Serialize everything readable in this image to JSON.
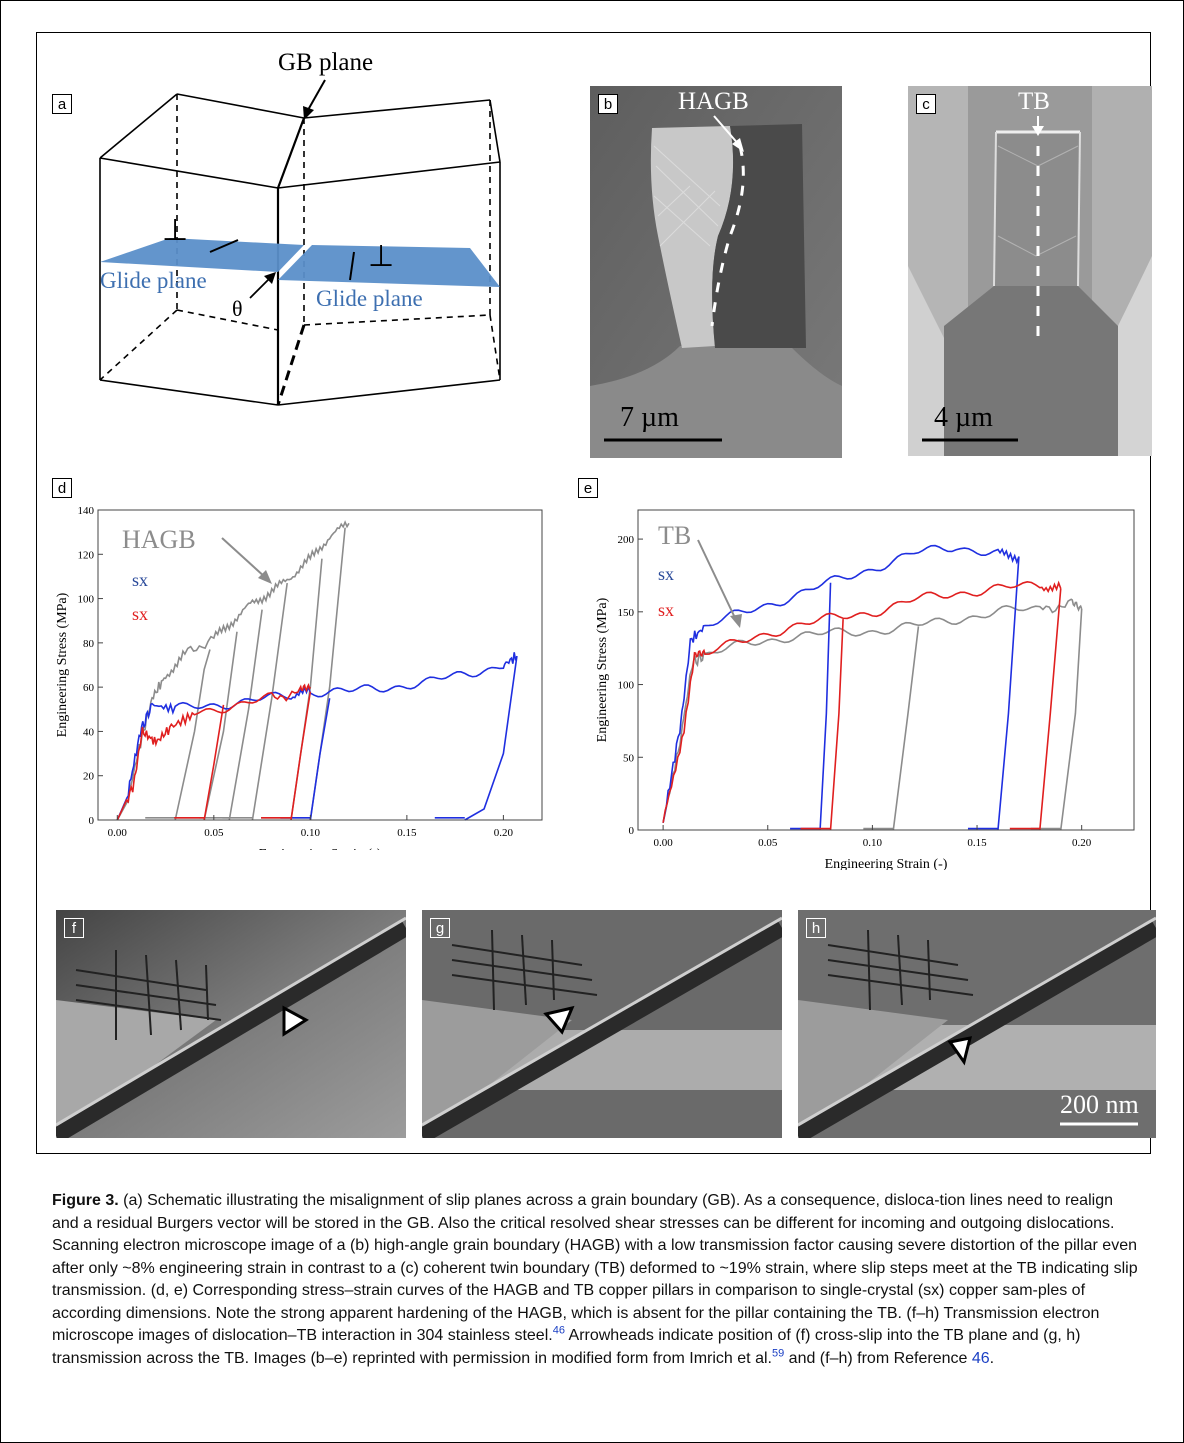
{
  "panel_labels": {
    "a": "a",
    "b": "b",
    "c": "c",
    "d": "d",
    "e": "e",
    "f": "f",
    "g": "g",
    "h": "h"
  },
  "schematic": {
    "gb_plane": "GB plane",
    "glide_left": "Glide plane",
    "glide_right": "Glide plane",
    "theta": "θ",
    "dislocation_symbol": "⊥",
    "glide_color": "#5b8fc9"
  },
  "sem_b": {
    "boundary_label": "HAGB",
    "scale": "7 µm"
  },
  "sem_c": {
    "boundary_label": "TB",
    "scale": "4 µm"
  },
  "tem": {
    "scale": "200 nm"
  },
  "colors": {
    "hagb": "#8c8c8c",
    "tb": "#8c8c8c",
    "sx_blue": "#1f2fe0",
    "sx_red": "#e01f1f",
    "label_blue": "#2a4a9a",
    "label_red": "#e01f1f"
  },
  "chart_data": [
    {
      "type": "line",
      "panel": "d",
      "xlabel": "Engineering Strain (-)",
      "ylabel": "Engineering Stress (MPa)",
      "xlim": [
        -0.01,
        0.22
      ],
      "ylim": [
        0,
        140
      ],
      "xticks": [
        "0.00",
        "0.05",
        "0.10",
        "0.15",
        "0.20"
      ],
      "yticks": [
        "0",
        "20",
        "40",
        "60",
        "80",
        "100",
        "120",
        "140"
      ],
      "legend": {
        "hagb": "HAGB",
        "sx1": "sx",
        "sx2": "sx"
      },
      "series": [
        {
          "name": "HAGB",
          "color": "#8c8c8c",
          "points": [
            [
              0.0,
              0
            ],
            [
              0.005,
              8
            ],
            [
              0.012,
              35
            ],
            [
              0.018,
              55
            ],
            [
              0.025,
              65
            ],
            [
              0.035,
              75
            ],
            [
              0.05,
              82
            ],
            [
              0.06,
              90
            ],
            [
              0.07,
              98
            ],
            [
              0.08,
              103
            ],
            [
              0.09,
              110
            ],
            [
              0.1,
              118
            ],
            [
              0.11,
              128
            ],
            [
              0.12,
              134
            ]
          ],
          "unload": [
            [
              [
                0.03,
                0
              ],
              [
                0.04,
                40
              ],
              [
                0.045,
                68
              ],
              [
                0.048,
                77
              ]
            ],
            [
              [
                0.045,
                0
              ],
              [
                0.055,
                40
              ],
              [
                0.062,
                85
              ]
            ],
            [
              [
                0.058,
                0
              ],
              [
                0.068,
                50
              ],
              [
                0.075,
                95
              ]
            ],
            [
              [
                0.07,
                0
              ],
              [
                0.08,
                55
              ],
              [
                0.088,
                107
              ]
            ],
            [
              [
                0.09,
                0
              ],
              [
                0.1,
                60
              ],
              [
                0.106,
                118
              ]
            ],
            [
              [
                0.1,
                0
              ],
              [
                0.11,
                60
              ],
              [
                0.118,
                132
              ]
            ]
          ]
        },
        {
          "name": "sx",
          "color": "#1f2fe0",
          "points": [
            [
              0.0,
              0
            ],
            [
              0.005,
              10
            ],
            [
              0.012,
              40
            ],
            [
              0.018,
              52
            ],
            [
              0.03,
              50
            ],
            [
              0.05,
              52
            ],
            [
              0.07,
              54
            ],
            [
              0.09,
              56
            ],
            [
              0.1,
              58
            ],
            [
              0.12,
              58
            ],
            [
              0.14,
              60
            ],
            [
              0.16,
              62
            ],
            [
              0.18,
              66
            ],
            [
              0.2,
              70
            ],
            [
              0.207,
              74
            ]
          ],
          "unload": [
            [
              [
                0.1,
                0
              ],
              [
                0.105,
                30
              ],
              [
                0.11,
                55
              ]
            ],
            [
              [
                0.18,
                0
              ],
              [
                0.19,
                5
              ],
              [
                0.2,
                30
              ],
              [
                0.207,
                74
              ]
            ]
          ]
        },
        {
          "name": "sx",
          "color": "#e01f1f",
          "points": [
            [
              0.0,
              0
            ],
            [
              0.008,
              15
            ],
            [
              0.013,
              40
            ],
            [
              0.02,
              35
            ],
            [
              0.028,
              42
            ],
            [
              0.04,
              48
            ],
            [
              0.06,
              52
            ],
            [
              0.08,
              55
            ],
            [
              0.095,
              58
            ],
            [
              0.1,
              60
            ]
          ],
          "unload": [
            [
              [
                0.045,
                0
              ],
              [
                0.05,
                25
              ],
              [
                0.055,
                52
              ]
            ],
            [
              [
                0.09,
                0
              ],
              [
                0.095,
                30
              ],
              [
                0.1,
                58
              ]
            ]
          ]
        }
      ]
    },
    {
      "type": "line",
      "panel": "e",
      "xlabel": "Engineering Strain (-)",
      "ylabel": "Engineering Stress (MPa)",
      "xlim": [
        -0.012,
        0.225
      ],
      "ylim": [
        0,
        220
      ],
      "xticks": [
        "0.00",
        "0.05",
        "0.10",
        "0.15",
        "0.20"
      ],
      "yticks": [
        "0",
        "50",
        "100",
        "150",
        "200"
      ],
      "legend": {
        "tb": "TB",
        "sx1": "sx",
        "sx2": "sx"
      },
      "series": [
        {
          "name": "TB",
          "color": "#8c8c8c",
          "points": [
            [
              0.0,
              5
            ],
            [
              0.008,
              60
            ],
            [
              0.014,
              115
            ],
            [
              0.02,
              120
            ],
            [
              0.04,
              128
            ],
            [
              0.06,
              133
            ],
            [
              0.08,
              135
            ],
            [
              0.1,
              137
            ],
            [
              0.12,
              140
            ],
            [
              0.14,
              145
            ],
            [
              0.16,
              150
            ],
            [
              0.18,
              152
            ],
            [
              0.195,
              155
            ],
            [
              0.2,
              152
            ]
          ],
          "unload": [
            [
              [
                0.11,
                0
              ],
              [
                0.117,
                80
              ],
              [
                0.122,
                140
              ]
            ],
            [
              [
                0.19,
                0
              ],
              [
                0.197,
                80
              ],
              [
                0.2,
                152
              ]
            ]
          ]
        },
        {
          "name": "sx",
          "color": "#1f2fe0",
          "points": [
            [
              0.0,
              5
            ],
            [
              0.008,
              70
            ],
            [
              0.013,
              130
            ],
            [
              0.02,
              140
            ],
            [
              0.04,
              150
            ],
            [
              0.06,
              160
            ],
            [
              0.08,
              170
            ],
            [
              0.1,
              180
            ],
            [
              0.12,
              190
            ],
            [
              0.14,
              195
            ],
            [
              0.16,
              190
            ],
            [
              0.17,
              188
            ]
          ],
          "unload": [
            [
              [
                0.075,
                0
              ],
              [
                0.078,
                80
              ],
              [
                0.08,
                170
              ]
            ],
            [
              [
                0.16,
                0
              ],
              [
                0.165,
                80
              ],
              [
                0.17,
                188
              ]
            ]
          ]
        },
        {
          "name": "sx",
          "color": "#e01f1f",
          "points": [
            [
              0.0,
              5
            ],
            [
              0.01,
              70
            ],
            [
              0.015,
              118
            ],
            [
              0.02,
              122
            ],
            [
              0.04,
              130
            ],
            [
              0.06,
              140
            ],
            [
              0.08,
              145
            ],
            [
              0.1,
              150
            ],
            [
              0.12,
              158
            ],
            [
              0.14,
              163
            ],
            [
              0.16,
              166
            ],
            [
              0.18,
              168
            ],
            [
              0.19,
              166
            ]
          ],
          "unload": [
            [
              [
                0.08,
                0
              ],
              [
                0.084,
                80
              ],
              [
                0.086,
                145
              ]
            ],
            [
              [
                0.18,
                0
              ],
              [
                0.185,
                80
              ],
              [
                0.19,
                166
              ]
            ]
          ]
        }
      ]
    }
  ],
  "caption": {
    "label": "Figure 3.",
    "part1": " (a) Schematic illustrating the misalignment of slip planes across a grain boundary (GB). As a consequence, disloca-tion lines need to realign and a residual Burgers vector will be stored in the GB. Also the critical resolved shear stresses can be different for incoming and outgoing dislocations. Scanning electron microscope image of a (b) high-angle grain boundary (HAGB) with a low transmission factor causing severe distortion of the pillar even after only ~8% engineering strain in contrast to a (c) coherent twin boundary (TB) deformed to ~19% strain, where slip steps meet at the TB indicating slip transmission. (d, e) Corresponding stress–strain curves of the HAGB and TB copper pillars in comparison to single-crystal (sx) copper sam-ples of according dimensions. Note the strong apparent hardening of the HAGB, which is absent for the pillar containing the TB. (f–h) Transmission electron microscope images of dislocation–TB interaction in 304 stainless steel.",
    "ref1": "46",
    "part2": " Arrowheads indicate position of (f) cross-slip into the TB plane and (g, h) transmission across the TB. Images (b–e) reprinted with permission in modified form from Imrich et al.",
    "ref2": "59",
    "part3": " and (f–h) from Reference ",
    "ref3": "46",
    "part4": "."
  }
}
